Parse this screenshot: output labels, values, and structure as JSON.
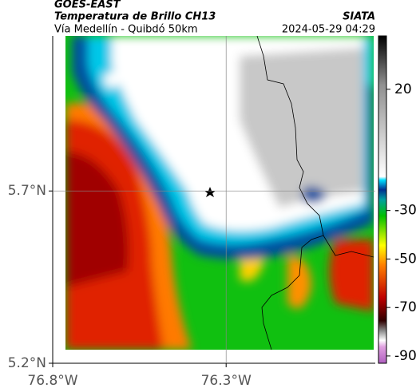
{
  "header": {
    "satellite": "GOES-EAST",
    "product": "Temperatura de Brillo CH13",
    "source": "SIATA",
    "region": "Vía Medellín - Quibdó 50km",
    "datetime": "2024-05-29 04:29"
  },
  "map": {
    "xlim": [
      -76.8,
      -75.87
    ],
    "ylim": [
      5.2,
      6.15
    ],
    "xticks": [
      {
        "value": -76.8,
        "label": "76.8°W"
      },
      {
        "value": -76.3,
        "label": "76.3°W"
      }
    ],
    "yticks": [
      {
        "value": 5.2,
        "label": "5.2°N"
      },
      {
        "value": 5.7,
        "label": "5.7°N"
      }
    ],
    "grid": true
  },
  "colorbar": {
    "lim": [
      -93,
      42
    ],
    "ticks": [
      20,
      -30,
      -50,
      -70,
      -90
    ]
  }
}
